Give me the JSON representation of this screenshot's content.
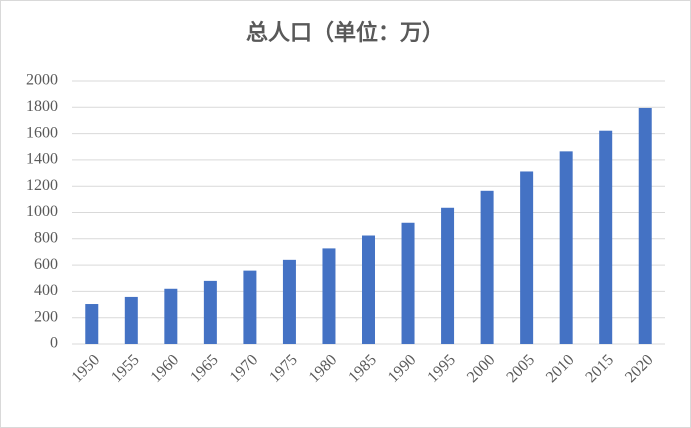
{
  "chart_data": {
    "type": "bar",
    "title": "总人口（单位：万）",
    "categories": [
      "1950",
      "1955",
      "1960",
      "1965",
      "1970",
      "1975",
      "1980",
      "1985",
      "1990",
      "1995",
      "2000",
      "2005",
      "2010",
      "2015",
      "2020"
    ],
    "values": [
      304,
      358,
      420,
      480,
      558,
      640,
      727,
      825,
      922,
      1036,
      1165,
      1312,
      1465,
      1622,
      1795
    ],
    "color": "#4472c4",
    "ylim": [
      0,
      2000
    ],
    "yticks": [
      0,
      200,
      400,
      600,
      800,
      1000,
      1200,
      1400,
      1600,
      1800,
      2000
    ],
    "grid": true
  }
}
